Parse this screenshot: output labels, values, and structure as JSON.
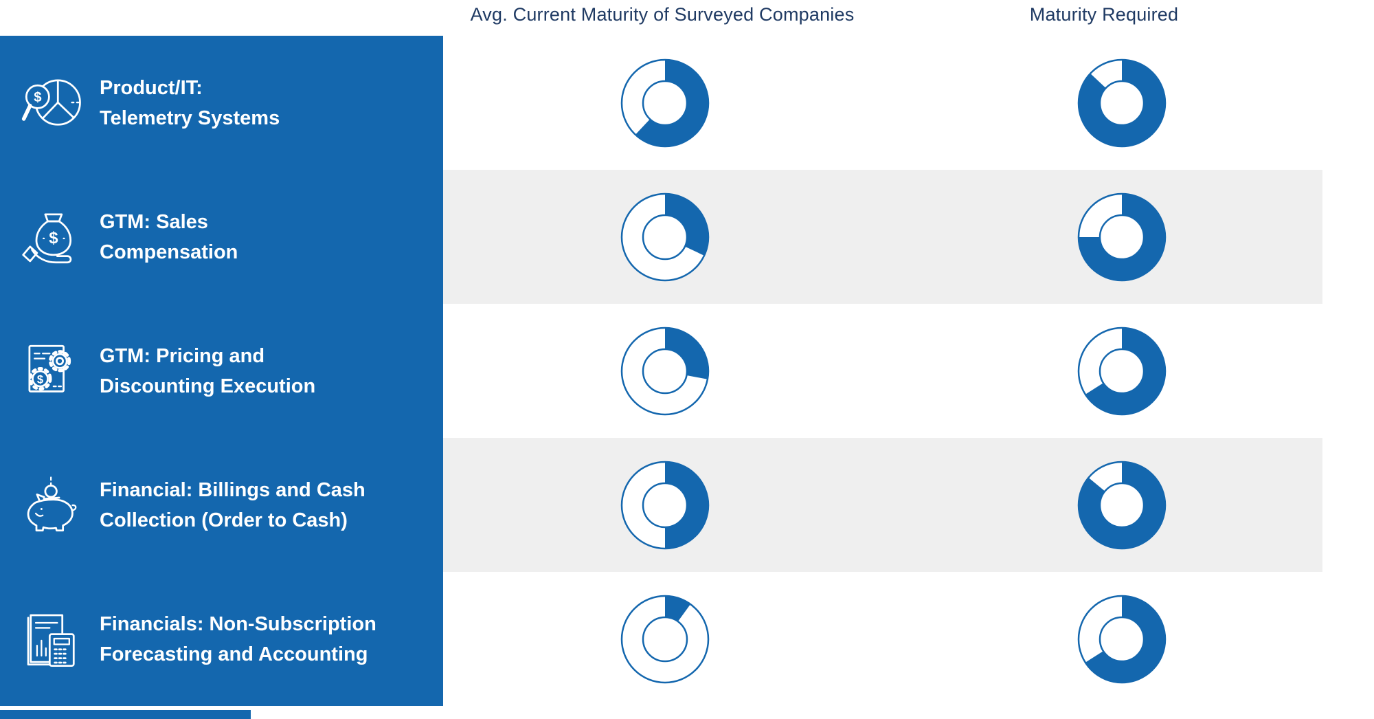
{
  "headers": {
    "current": "Avg. Current Maturity of Surveyed Companies",
    "required": "Maturity Required"
  },
  "rows": [
    {
      "icon": "magnifier-dollar-pie-icon",
      "label_line1": "Product/IT:",
      "label_line2": "Telemetry Systems",
      "current_pct": 62,
      "required_pct": 87
    },
    {
      "icon": "hand-money-bag-icon",
      "label_line1": "GTM: Sales",
      "label_line2": "Compensation",
      "current_pct": 32,
      "required_pct": 75
    },
    {
      "icon": "document-gears-dollar-icon",
      "label_line1": "GTM: Pricing and",
      "label_line2": "Discounting Execution",
      "current_pct": 28,
      "required_pct": 66
    },
    {
      "icon": "piggy-bank-coin-icon",
      "label_line1": "Financial: Billings and Cash",
      "label_line2": "Collection (Order to Cash)",
      "current_pct": 50,
      "required_pct": 86
    },
    {
      "icon": "receipt-calculator-icon",
      "label_line1": "Financials: Non-Subscription",
      "label_line2": "Forecasting and Accounting",
      "current_pct": 10,
      "required_pct": 66
    }
  ],
  "colors": {
    "brand_blue": "#1467AE",
    "header_navy": "#1F3A63",
    "row_alt_gray": "#EFEFEF",
    "donut_empty": "#FFFFFF"
  },
  "chart_data": {
    "type": "pie",
    "subtype": "donut-gauge-matrix",
    "title": "",
    "categories": [
      "Product/IT: Telemetry Systems",
      "GTM: Sales Compensation",
      "GTM: Pricing and Discounting Execution",
      "Financial: Billings and Cash Collection (Order to Cash)",
      "Financials: Non-Subscription Forecasting and Accounting"
    ],
    "series": [
      {
        "name": "Avg. Current Maturity of Surveyed Companies",
        "values_pct": [
          62,
          32,
          28,
          50,
          10
        ]
      },
      {
        "name": "Maturity Required",
        "values_pct": [
          87,
          75,
          66,
          86,
          66
        ]
      }
    ],
    "value_range": [
      0,
      100
    ],
    "legend_position": "none",
    "grid": false,
    "notes": "Each cell is a donut gauge filled clockwise from 12 o'clock in brand blue; the unfilled remainder is a white ring with a thin blue outline. Rows alternate white and light-gray bands."
  }
}
